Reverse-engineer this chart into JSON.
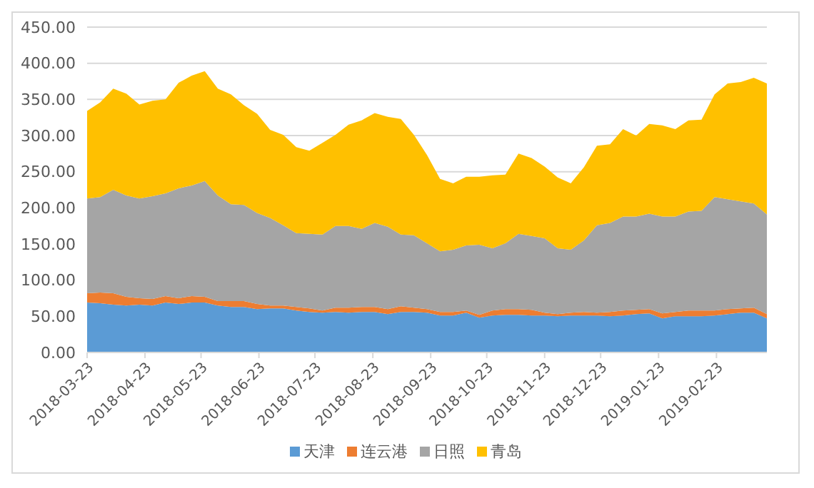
{
  "chart_data": {
    "type": "area",
    "stacked": true,
    "legend": "bottom",
    "grid": "y",
    "marker": "none",
    "x": [
      "2018-03-23",
      "2018-03-30",
      "2018-04-06",
      "2018-04-13",
      "2018-04-20",
      "2018-04-27",
      "2018-05-04",
      "2018-05-11",
      "2018-05-18",
      "2018-05-25",
      "2018-06-01",
      "2018-06-08",
      "2018-06-15",
      "2018-06-22",
      "2018-06-29",
      "2018-07-06",
      "2018-07-13",
      "2018-07-20",
      "2018-07-27",
      "2018-08-03",
      "2018-08-10",
      "2018-08-17",
      "2018-08-24",
      "2018-08-31",
      "2018-09-07",
      "2018-09-14",
      "2018-09-21",
      "2018-09-28",
      "2018-10-05",
      "2018-10-12",
      "2018-10-19",
      "2018-10-26",
      "2018-11-02",
      "2018-11-09",
      "2018-11-16",
      "2018-11-23",
      "2018-11-30",
      "2018-12-07",
      "2018-12-14",
      "2018-12-21",
      "2018-12-28",
      "2019-01-04",
      "2019-01-11",
      "2019-01-18",
      "2019-01-25",
      "2019-02-01",
      "2019-02-08",
      "2019-02-15",
      "2019-02-22",
      "2019-03-01",
      "2019-03-08",
      "2019-03-15",
      "2019-03-22"
    ],
    "xlim": [
      "2018-03-23",
      "2019-03-22"
    ],
    "xticks": [
      "2018-03-23",
      "2018-04-23",
      "2018-05-23",
      "2018-06-23",
      "2018-07-23",
      "2018-08-23",
      "2018-09-23",
      "2018-10-23",
      "2018-11-23",
      "2018-12-23",
      "2019-01-23",
      "2019-02-23"
    ],
    "ylim": [
      0,
      450
    ],
    "yticks": [
      {
        "value": 0,
        "label": "0.00"
      },
      {
        "value": 50,
        "label": "50.00"
      },
      {
        "value": 100,
        "label": "100.00"
      },
      {
        "value": 150,
        "label": "150.00"
      },
      {
        "value": 200,
        "label": "200.00"
      },
      {
        "value": 250,
        "label": "250.00"
      },
      {
        "value": 300,
        "label": "300.00"
      },
      {
        "value": 350,
        "label": "350.00"
      },
      {
        "value": 400,
        "label": "400.00"
      },
      {
        "value": 450,
        "label": "450.00"
      }
    ],
    "series": [
      {
        "name": "天津",
        "color": "#5b9bd5",
        "values": [
          69,
          68,
          66,
          65,
          66,
          65,
          69,
          67,
          69,
          69,
          65,
          63,
          63,
          60,
          61,
          61,
          58,
          56,
          55,
          56,
          55,
          56,
          56,
          53,
          56,
          56,
          55,
          51,
          51,
          55,
          48,
          51,
          52,
          52,
          51,
          51,
          50,
          51,
          51,
          51,
          50,
          51,
          53,
          54,
          47,
          50,
          50,
          50,
          51,
          53,
          55,
          55,
          47
        ]
      },
      {
        "name": "连云港",
        "color": "#ed7d31",
        "values": [
          13,
          15,
          16,
          12,
          9,
          9,
          9,
          8,
          9,
          8,
          6,
          8,
          8,
          7,
          4,
          4,
          5,
          5,
          3,
          6,
          7,
          7,
          7,
          7,
          8,
          6,
          5,
          5,
          5,
          3,
          4,
          7,
          8,
          8,
          8,
          4,
          3,
          4,
          5,
          4,
          6,
          7,
          6,
          6,
          7,
          6,
          8,
          8,
          7,
          7,
          6,
          7,
          6
        ]
      },
      {
        "name": "日照",
        "color": "#a5a5a5",
        "values": [
          131,
          132,
          143,
          140,
          138,
          142,
          142,
          152,
          153,
          160,
          146,
          134,
          133,
          126,
          121,
          111,
          102,
          103,
          105,
          113,
          113,
          108,
          116,
          114,
          99,
          100,
          91,
          84,
          86,
          90,
          97,
          86,
          91,
          104,
          102,
          103,
          91,
          87,
          99,
          121,
          123,
          130,
          129,
          132,
          134,
          132,
          137,
          138,
          157,
          152,
          148,
          144,
          138
        ]
      },
      {
        "name": "青岛",
        "color": "#ffc000",
        "values": [
          121,
          131,
          140,
          141,
          130,
          132,
          130,
          146,
          152,
          152,
          148,
          152,
          138,
          137,
          122,
          125,
          119,
          115,
          127,
          126,
          140,
          150,
          152,
          152,
          160,
          139,
          122,
          100,
          92,
          95,
          94,
          101,
          95,
          111,
          108,
          99,
          98,
          92,
          101,
          110,
          109,
          121,
          112,
          124,
          126,
          121,
          126,
          126,
          142,
          160,
          165,
          174,
          181
        ]
      }
    ]
  }
}
